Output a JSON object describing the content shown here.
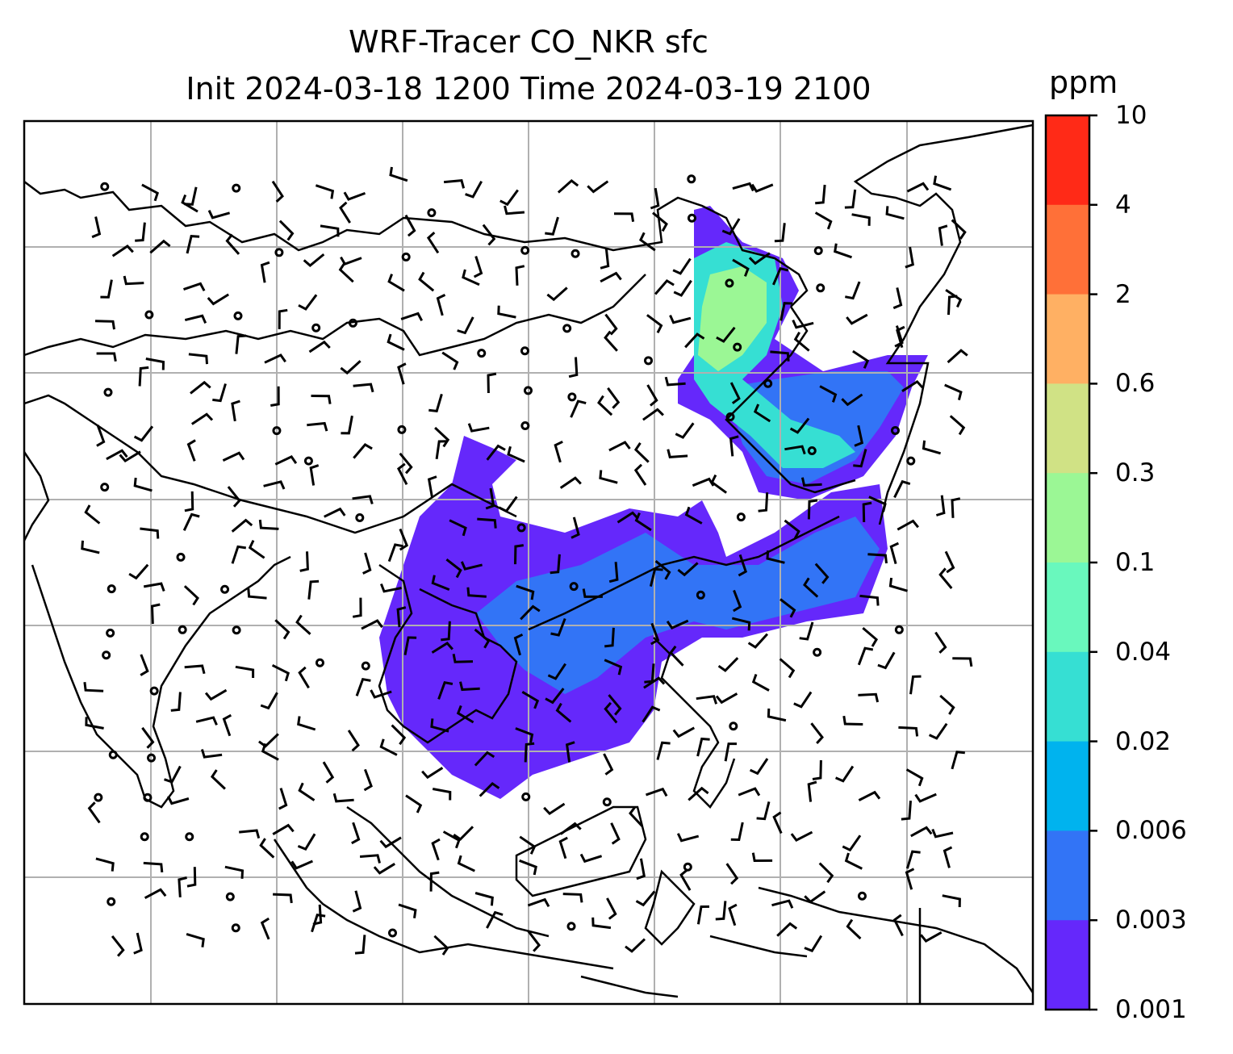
{
  "title": {
    "line1": "WRF-Tracer CO_NKR sfc",
    "line2": "Init 2024-03-18 1200 Time 2024-03-19 2100"
  },
  "colorbar": {
    "unit": "ppm",
    "labels": [
      "10",
      "4",
      "2",
      "0.6",
      "0.3",
      "0.1",
      "0.04",
      "0.02",
      "0.006",
      "0.003",
      "0.001"
    ],
    "colors": [
      "#ff2a17",
      "#ff7038",
      "#ffb063",
      "#d0e285",
      "#9bf795",
      "#69f8bd",
      "#36dfd3",
      "#00b3ee",
      "#3274f6",
      "#6528fb"
    ]
  },
  "map": {
    "grid_lines": "on",
    "plume_levels": {
      "outer": "#6528fb",
      "mid": "#3274f6",
      "core": "#36dfd3",
      "hotspot": "#9bf795"
    }
  }
}
